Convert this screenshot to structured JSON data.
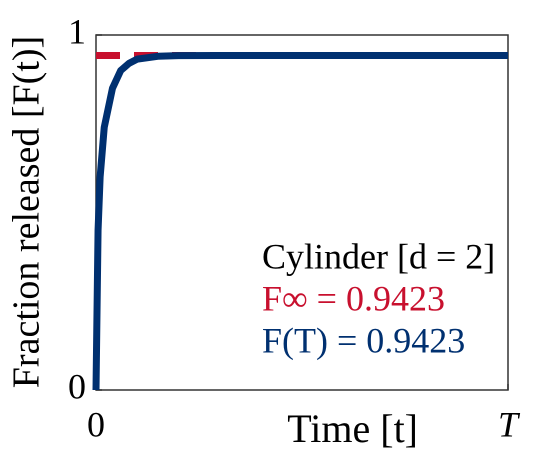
{
  "chart_data": {
    "type": "line",
    "x_label": "Time [t]",
    "y_label": "Fraction released [F(t)]",
    "x": [
      0,
      0.005,
      0.01,
      0.02,
      0.04,
      0.06,
      0.08,
      0.1,
      0.15,
      0.2,
      0.3,
      0.5,
      1
    ],
    "series": [
      {
        "color": "#003070",
        "values": [
          0,
          0.45,
          0.6,
          0.74,
          0.85,
          0.9,
          0.92,
          0.932,
          0.94,
          0.942,
          0.9423,
          0.9423,
          0.9423
        ]
      }
    ],
    "hline": {
      "value": 0.9423,
      "color": "#c8102e",
      "dashed": true
    },
    "annotations": [
      {
        "text": "Cylinder [d = 2]",
        "color": "#000000"
      },
      {
        "text": "F∞ = 0.9423",
        "color": "#c8102e"
      },
      {
        "text": "F(T) = 0.9423",
        "color": "#003070"
      }
    ],
    "xlim": [
      0,
      1
    ],
    "xticks": [
      0,
      {
        "value": 1,
        "label": "T"
      }
    ],
    "ylim": [
      0,
      1
    ],
    "yticks": [
      0,
      1
    ]
  }
}
